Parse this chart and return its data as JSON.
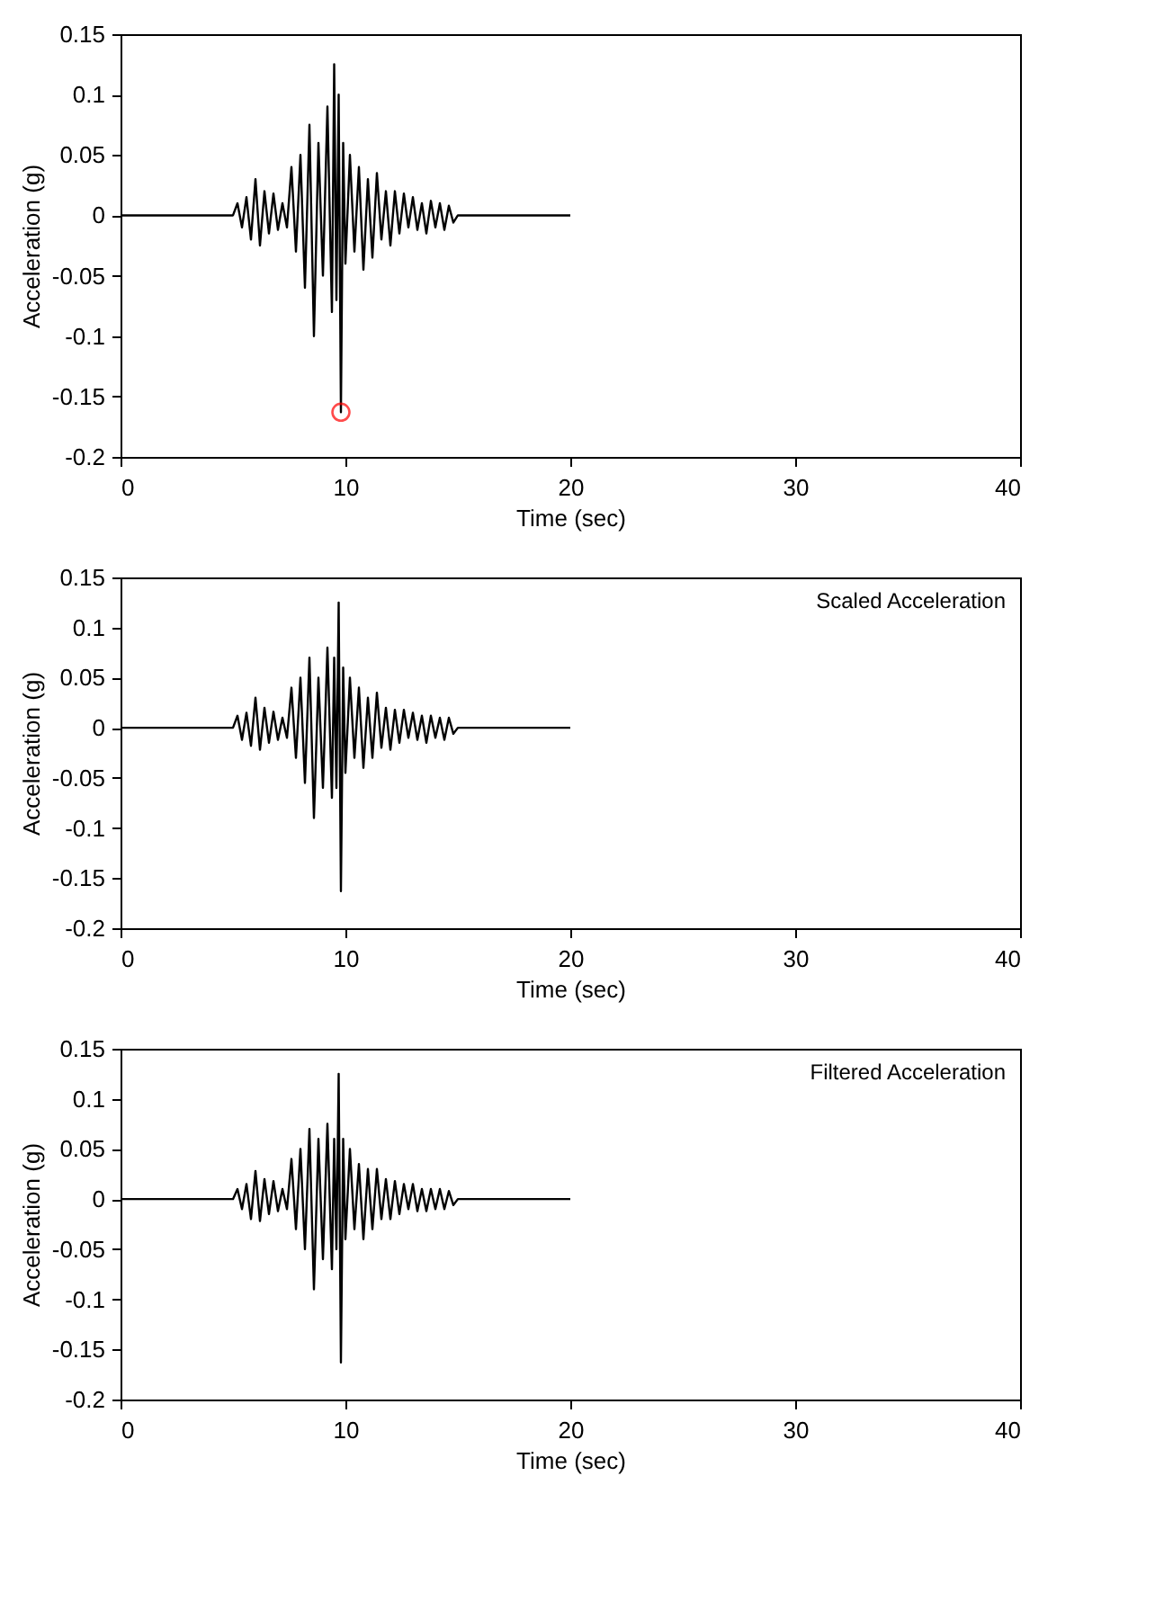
{
  "chart_data": [
    {
      "type": "line",
      "xlabel": "Time (sec)",
      "ylabel": "Acceleration (g)",
      "xlim": [
        0,
        40
      ],
      "xticks": [
        0,
        10,
        20,
        30,
        40
      ],
      "ylim": [
        -0.2,
        0.15
      ],
      "yticks": [
        -0.2,
        -0.15,
        -0.1,
        -0.05,
        0,
        0.05,
        0.1,
        0.15
      ],
      "grid": false,
      "line_style": "solid",
      "series": [
        {
          "color": "#000000",
          "marker": "none",
          "x": [
            0,
            5,
            5.2,
            5.4,
            5.6,
            5.8,
            6.0,
            6.2,
            6.4,
            6.6,
            6.8,
            7.0,
            7.2,
            7.4,
            7.6,
            7.8,
            8.0,
            8.2,
            8.4,
            8.6,
            8.8,
            9.0,
            9.2,
            9.4,
            9.5,
            9.6,
            9.7,
            9.8,
            9.9,
            10.0,
            10.2,
            10.4,
            10.6,
            10.8,
            11.0,
            11.2,
            11.4,
            11.6,
            11.8,
            12.0,
            12.2,
            12.4,
            12.6,
            12.8,
            13.0,
            13.2,
            13.4,
            13.6,
            13.8,
            14.0,
            14.2,
            14.4,
            14.6,
            14.8,
            15,
            20
          ],
          "values": [
            0,
            0,
            0.01,
            -0.01,
            0.015,
            -0.02,
            0.03,
            -0.025,
            0.02,
            -0.015,
            0.018,
            -0.012,
            0.01,
            -0.01,
            0.04,
            -0.03,
            0.05,
            -0.06,
            0.075,
            -0.1,
            0.06,
            -0.05,
            0.09,
            -0.08,
            0.125,
            -0.07,
            0.1,
            -0.163,
            0.06,
            -0.04,
            0.05,
            -0.03,
            0.04,
            -0.045,
            0.03,
            -0.035,
            0.035,
            -0.02,
            0.02,
            -0.025,
            0.02,
            -0.015,
            0.018,
            -0.01,
            0.015,
            -0.012,
            0.01,
            -0.015,
            0.012,
            -0.01,
            0.01,
            -0.012,
            0.008,
            -0.006,
            0,
            0
          ]
        },
        {
          "color": "#ff0000",
          "type": "scatter",
          "marker": "circle",
          "x": [
            9.8
          ],
          "values": [
            -0.163
          ]
        }
      ]
    },
    {
      "type": "line",
      "xlabel": "Time (sec)",
      "ylabel": "Acceleration (g)",
      "xlim": [
        0,
        40
      ],
      "xticks": [
        0,
        10,
        20,
        30,
        40
      ],
      "ylim": [
        -0.2,
        0.15
      ],
      "yticks": [
        -0.2,
        -0.15,
        -0.1,
        -0.05,
        0,
        0.05,
        0.1,
        0.15
      ],
      "grid": false,
      "line_style": "solid",
      "annotations": [
        "Scaled Acceleration"
      ],
      "series": [
        {
          "color": "#000000",
          "marker": "none",
          "x": [
            0,
            5,
            5.2,
            5.4,
            5.6,
            5.8,
            6.0,
            6.2,
            6.4,
            6.6,
            6.8,
            7.0,
            7.2,
            7.4,
            7.6,
            7.8,
            8.0,
            8.2,
            8.4,
            8.6,
            8.8,
            9.0,
            9.2,
            9.4,
            9.5,
            9.6,
            9.7,
            9.8,
            9.9,
            10.0,
            10.2,
            10.4,
            10.6,
            10.8,
            11.0,
            11.2,
            11.4,
            11.6,
            11.8,
            12.0,
            12.2,
            12.4,
            12.6,
            12.8,
            13.0,
            13.2,
            13.4,
            13.6,
            13.8,
            14.0,
            14.2,
            14.4,
            14.6,
            14.8,
            15,
            20
          ],
          "values": [
            0,
            0,
            0.012,
            -0.012,
            0.015,
            -0.018,
            0.03,
            -0.022,
            0.02,
            -0.015,
            0.016,
            -0.012,
            0.01,
            -0.01,
            0.04,
            -0.03,
            0.05,
            -0.055,
            0.07,
            -0.09,
            0.05,
            -0.06,
            0.08,
            -0.07,
            0.07,
            -0.06,
            0.125,
            -0.163,
            0.06,
            -0.045,
            0.05,
            -0.03,
            0.04,
            -0.04,
            0.03,
            -0.03,
            0.035,
            -0.02,
            0.02,
            -0.022,
            0.018,
            -0.015,
            0.018,
            -0.01,
            0.015,
            -0.012,
            0.012,
            -0.015,
            0.012,
            -0.01,
            0.01,
            -0.012,
            0.01,
            -0.006,
            0,
            0
          ]
        }
      ]
    },
    {
      "type": "line",
      "xlabel": "Time (sec)",
      "ylabel": "Acceleration (g)",
      "xlim": [
        0,
        40
      ],
      "xticks": [
        0,
        10,
        20,
        30,
        40
      ],
      "ylim": [
        -0.2,
        0.15
      ],
      "yticks": [
        -0.2,
        -0.15,
        -0.1,
        -0.05,
        0,
        0.05,
        0.1,
        0.15
      ],
      "grid": false,
      "line_style": "solid",
      "annotations": [
        "Filtered Acceleration"
      ],
      "series": [
        {
          "color": "#000000",
          "marker": "none",
          "x": [
            0,
            5,
            5.2,
            5.4,
            5.6,
            5.8,
            6.0,
            6.2,
            6.4,
            6.6,
            6.8,
            7.0,
            7.2,
            7.4,
            7.6,
            7.8,
            8.0,
            8.2,
            8.4,
            8.6,
            8.8,
            9.0,
            9.2,
            9.4,
            9.5,
            9.6,
            9.7,
            9.8,
            9.9,
            10.0,
            10.2,
            10.4,
            10.6,
            10.8,
            11.0,
            11.2,
            11.4,
            11.6,
            11.8,
            12.0,
            12.2,
            12.4,
            12.6,
            12.8,
            13.0,
            13.2,
            13.4,
            13.6,
            13.8,
            14.0,
            14.2,
            14.4,
            14.6,
            14.8,
            15,
            20
          ],
          "values": [
            0,
            0,
            0.01,
            -0.01,
            0.015,
            -0.02,
            0.028,
            -0.022,
            0.02,
            -0.015,
            0.018,
            -0.012,
            0.01,
            -0.01,
            0.04,
            -0.03,
            0.05,
            -0.05,
            0.07,
            -0.09,
            0.06,
            -0.06,
            0.075,
            -0.07,
            0.06,
            -0.05,
            0.125,
            -0.163,
            0.06,
            -0.04,
            0.05,
            -0.03,
            0.035,
            -0.04,
            0.03,
            -0.03,
            0.03,
            -0.02,
            0.02,
            -0.02,
            0.018,
            -0.015,
            0.015,
            -0.01,
            0.015,
            -0.012,
            0.01,
            -0.012,
            0.01,
            -0.01,
            0.01,
            -0.01,
            0.008,
            -0.006,
            0,
            0
          ]
        }
      ]
    }
  ]
}
